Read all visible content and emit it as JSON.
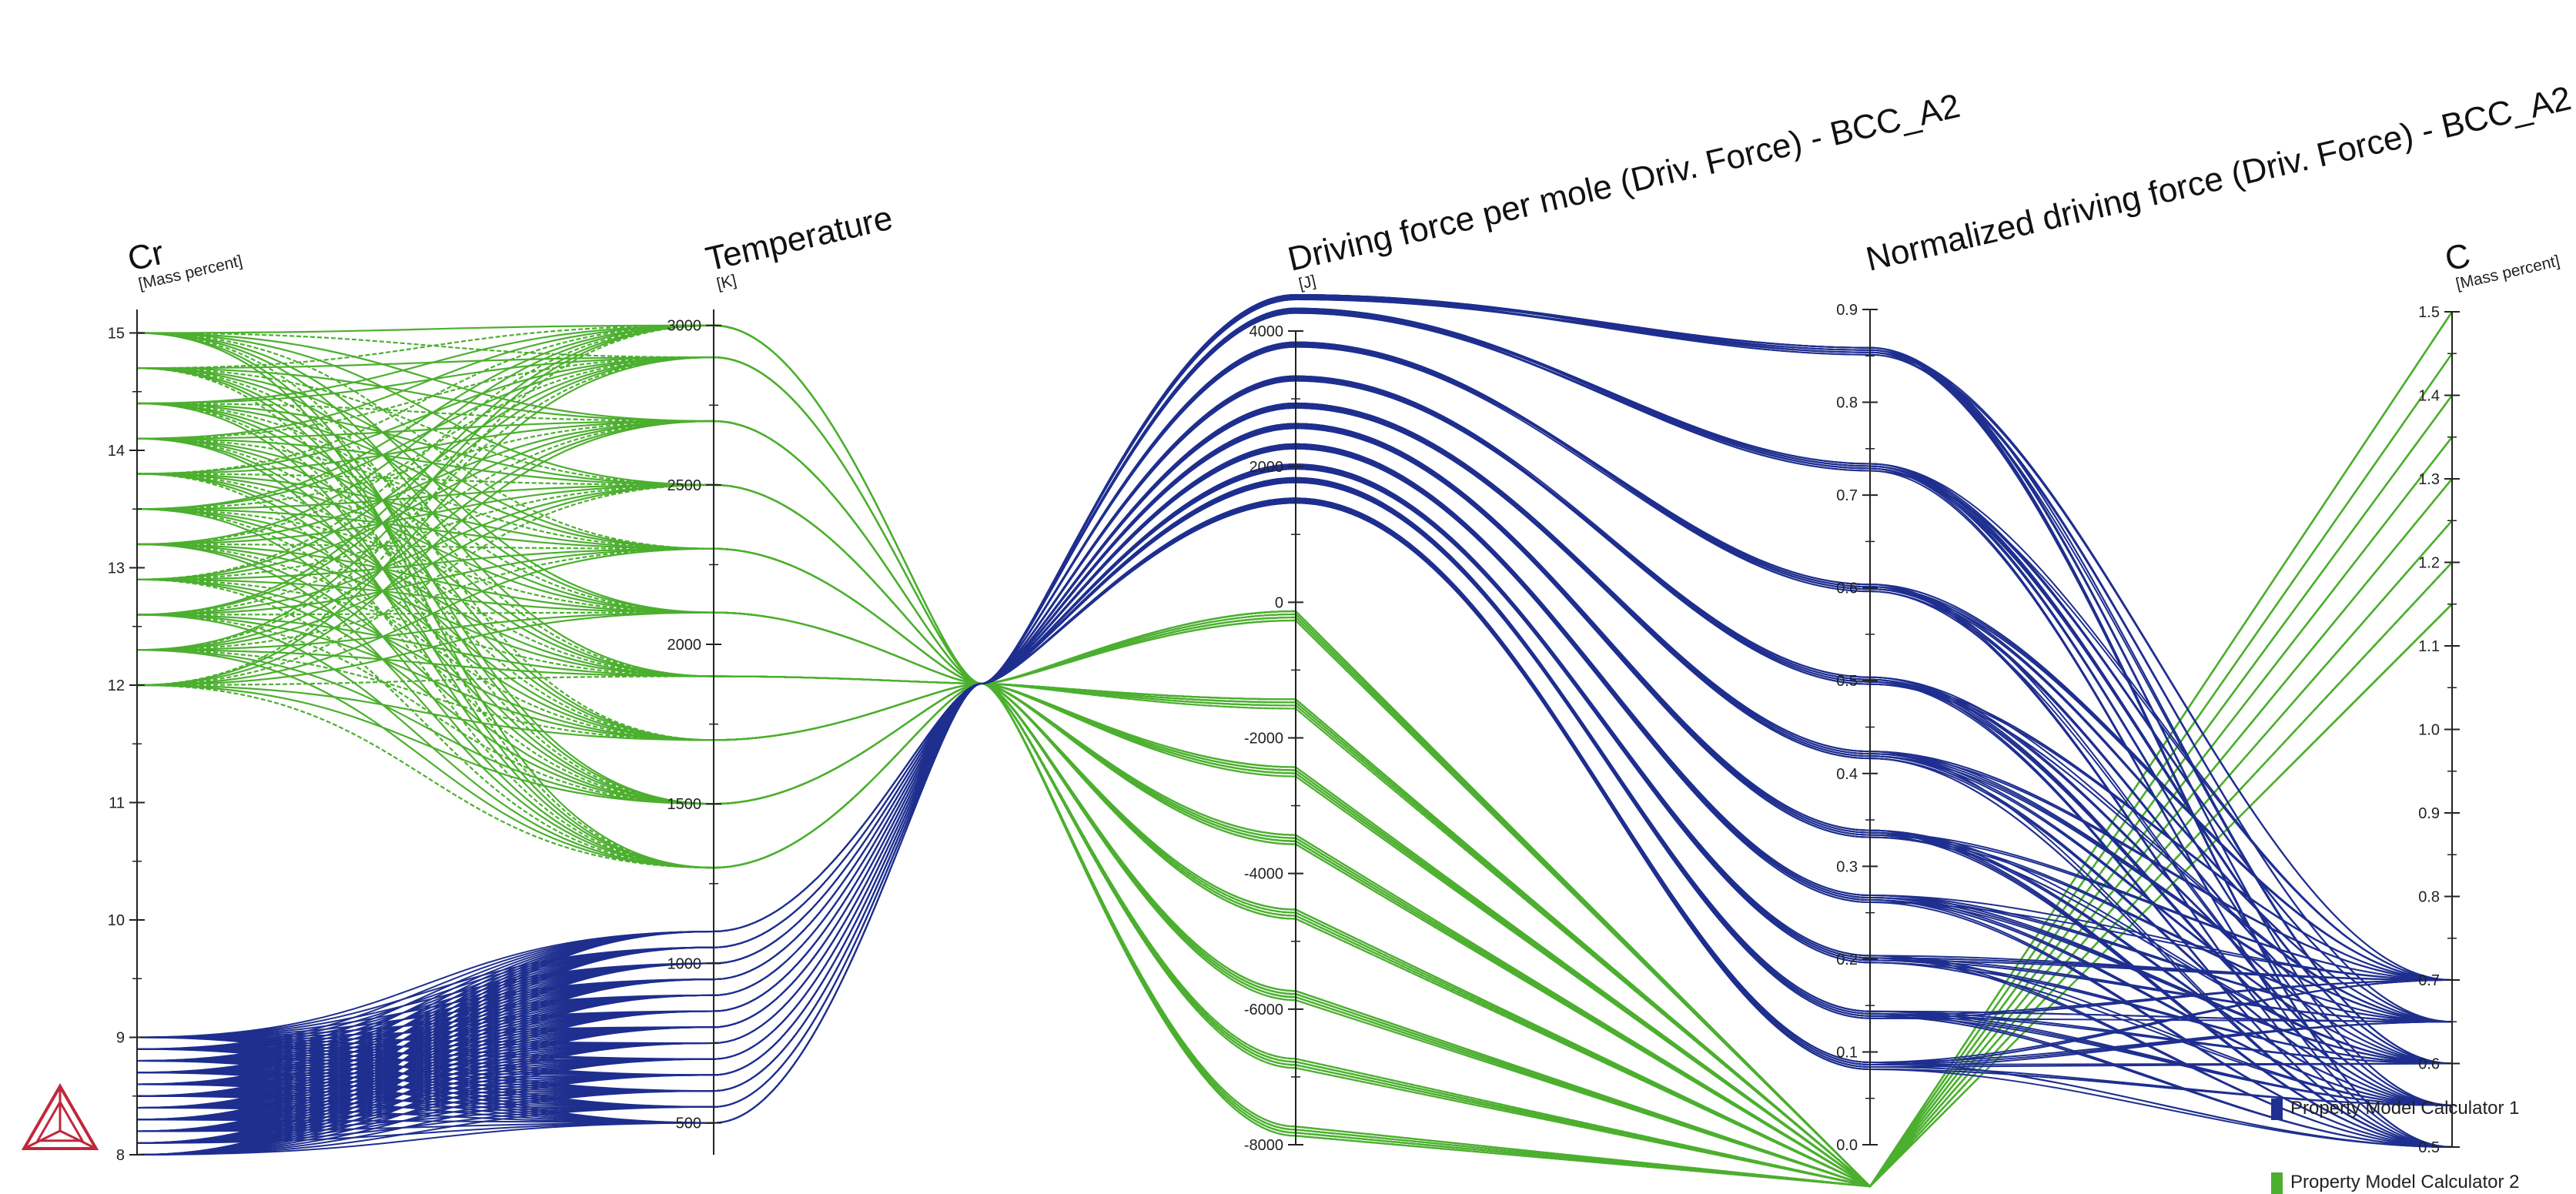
{
  "colors": {
    "series1": "#1f2f8f",
    "series2": "#4caf2f",
    "axis": "#222222",
    "logo": "#c0283c"
  },
  "logo": {
    "name": "thermo-calc-triangle-logo"
  },
  "chart_data": {
    "type": "parallel-coordinates",
    "title": "",
    "axes": [
      {
        "id": "cr",
        "title": "Cr",
        "unit": "[Mass percent]",
        "min": 8,
        "max": 15.2,
        "ticks": [
          "8",
          "9",
          "10",
          "11",
          "12",
          "13",
          "14",
          "15"
        ]
      },
      {
        "id": "temp",
        "title": "Temperature",
        "unit": "[K]",
        "min": 400,
        "max": 3050,
        "ticks": [
          "500",
          "1000",
          "1500",
          "2000",
          "2500",
          "3000"
        ]
      },
      {
        "id": "df",
        "title": "Driving force per mole (Driv. Force) - BCC_A2",
        "unit": "[J]",
        "min": -8000,
        "max": 4000,
        "ticks": [
          "-8000",
          "-6000",
          "-4000",
          "-2000",
          "0",
          "2000",
          "4000"
        ]
      },
      {
        "id": "ndf",
        "title": "Normalized driving force (Driv. Force) - BCC_A2",
        "unit": "",
        "min": 0,
        "max": 0.9,
        "ticks": [
          "0.0",
          "0.1",
          "0.2",
          "0.3",
          "0.4",
          "0.5",
          "0.6",
          "0.7",
          "0.8",
          "0.9"
        ]
      },
      {
        "id": "c",
        "title": "C",
        "unit": "[Mass percent]",
        "min": 0.5,
        "max": 1.5,
        "ticks": [
          "0.5",
          "0.6",
          "0.7",
          "0.8",
          "0.9",
          "1.0",
          "1.1",
          "1.2",
          "1.3",
          "1.4",
          "1.5"
        ]
      }
    ],
    "series": [
      {
        "name": "Property Model Calculator 1",
        "cr_values": [
          8.0,
          8.1,
          8.2,
          8.3,
          8.4,
          8.5,
          8.6,
          8.7,
          8.8,
          8.9,
          9.0
        ],
        "temperature_values": [
          500,
          550,
          600,
          650,
          700,
          750,
          800,
          850,
          900,
          950,
          1000,
          1050,
          1100
        ],
        "driving_force_values": [
          4500,
          4300,
          3800,
          3300,
          2900,
          2600,
          2300,
          2000,
          1800,
          1500
        ],
        "normalized_values": [
          0.855,
          0.73,
          0.6,
          0.5,
          0.42,
          0.335,
          0.265,
          0.2,
          0.14,
          0.085
        ],
        "c_values": [
          0.5,
          0.55,
          0.6,
          0.65,
          0.7
        ]
      },
      {
        "name": "Property Model Calculator 2",
        "cr_values": [
          12.0,
          12.3,
          12.6,
          12.9,
          13.2,
          13.5,
          13.8,
          14.1,
          14.4,
          14.7,
          15.0
        ],
        "temperature_values": [
          1300,
          1500,
          1700,
          1900,
          2100,
          2300,
          2500,
          2700,
          2900,
          3000
        ],
        "driving_force_values": [
          -200,
          -1500,
          -2500,
          -3500,
          -4600,
          -5800,
          -6800,
          -7800
        ],
        "normalized_values": [
          -0.02
        ],
        "c_values": [
          1.15,
          1.2,
          1.25,
          1.3,
          1.35,
          1.4,
          1.45,
          1.5
        ]
      }
    ],
    "legend": {
      "position": "bottom-right"
    }
  }
}
